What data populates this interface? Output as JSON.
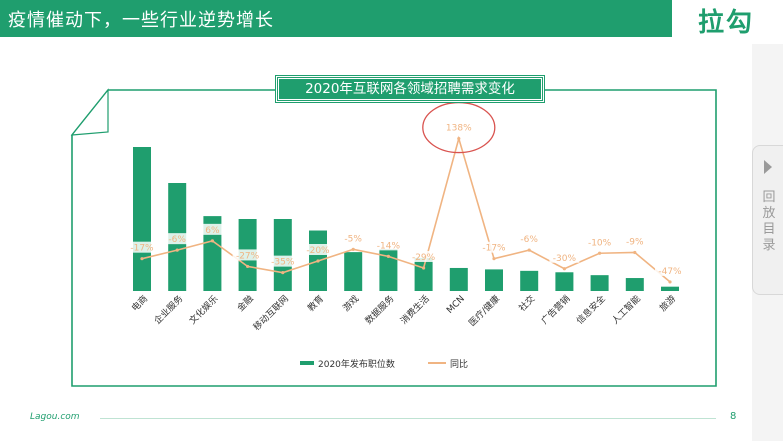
{
  "header": {
    "title": "疫情催动下，一些行业逆势增长",
    "logo": "拉勾"
  },
  "side_tab": {
    "label": "回放目录"
  },
  "footer": {
    "brand": "Lagou.com",
    "page": "8"
  },
  "colors": {
    "bar": "#1f9e6e",
    "line": "#f0b482",
    "highlight_circle": "#d9534f"
  },
  "chart_data": {
    "type": "bar",
    "title": "2020年互联网各领域招聘需求变化",
    "categories": [
      "电商",
      "企业服务",
      "文化娱乐",
      "金融",
      "移动互联网",
      "教育",
      "游戏",
      "数据服务",
      "消费生活",
      "MCN",
      "医疗/健康",
      "社交",
      "广告营销",
      "信息安全",
      "人工智能",
      "旅游"
    ],
    "series": [
      {
        "name": "2020年发布职位数",
        "kind": "bar",
        "values": [
          100,
          75,
          52,
          50,
          50,
          42,
          27,
          29,
          23,
          16,
          15,
          14,
          13,
          11,
          9,
          3
        ]
      },
      {
        "name": "同比",
        "kind": "line",
        "unit": "%",
        "values": [
          -17,
          -6,
          6,
          -27,
          -35,
          -20,
          -5,
          -14,
          -29,
          138,
          -17,
          -6,
          -30,
          -10,
          -9,
          -47
        ]
      }
    ],
    "value_labels": [
      "-17%",
      "-6%",
      "6%",
      "-27%",
      "-35%",
      "-20%",
      "-5%",
      "-14%",
      "-29%",
      "138%",
      "-17%",
      "-6%",
      "-30%",
      "-10%",
      "-9%",
      "-47%"
    ],
    "ylim_bar": [
      0,
      100
    ],
    "ylim_line": [
      -60,
      140
    ],
    "legend": "bottom-center",
    "grid": false,
    "annotation": "MCN value circled in red"
  }
}
